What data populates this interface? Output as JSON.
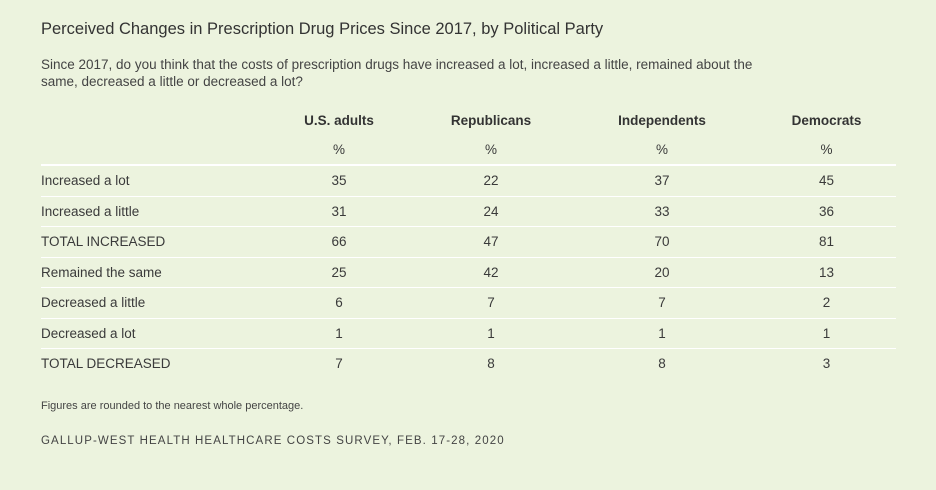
{
  "title": "Perceived Changes in Prescription Drug Prices Since 2017, by Political Party",
  "question": "Since 2017, do you think that the costs of prescription drugs have increased a lot, increased a little, remained about the same, decreased a little or decreased a lot?",
  "note": "Figures are rounded to the nearest whole percentage.",
  "source": "GALLUP-WEST HEALTH HEALTHCARE COSTS SURVEY, FEB. 17-28, 2020",
  "chart_data": {
    "type": "table",
    "title": "Perceived Changes in Prescription Drug Prices Since 2017, by Political Party",
    "columns": [
      "U.S. adults",
      "Republicans",
      "Independents",
      "Democrats"
    ],
    "units": [
      "%",
      "%",
      "%",
      "%"
    ],
    "rows": [
      {
        "label": "Increased a lot",
        "values": [
          35,
          22,
          37,
          45
        ]
      },
      {
        "label": "Increased a little",
        "values": [
          31,
          24,
          33,
          36
        ]
      },
      {
        "label": "TOTAL INCREASED",
        "values": [
          66,
          47,
          70,
          81
        ]
      },
      {
        "label": "Remained the same",
        "values": [
          25,
          42,
          20,
          13
        ]
      },
      {
        "label": "Decreased a little",
        "values": [
          6,
          7,
          7,
          2
        ]
      },
      {
        "label": "Decreased a lot",
        "values": [
          1,
          1,
          1,
          1
        ]
      },
      {
        "label": "TOTAL DECREASED",
        "values": [
          7,
          8,
          8,
          3
        ]
      }
    ]
  }
}
